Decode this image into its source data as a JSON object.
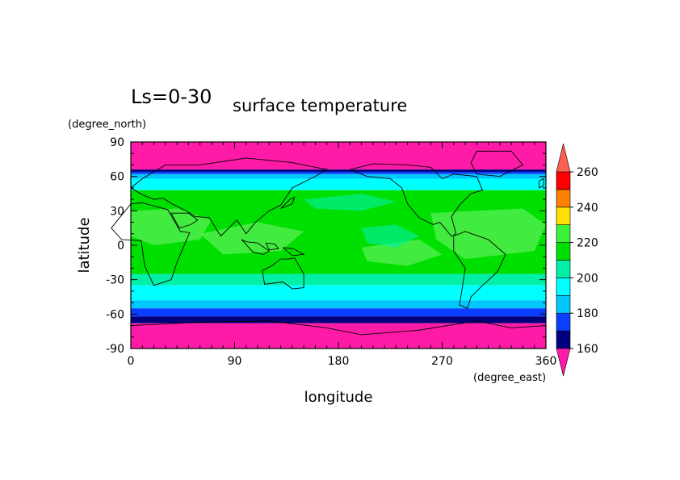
{
  "chart_data": {
    "type": "heatmap",
    "title": "surface temperature",
    "subtitle": "Ls=0-30",
    "xlabel": "longitude",
    "ylabel": "latitude",
    "x_units": "(degree_east)",
    "y_units": "(degree_north)",
    "xlim": [
      0,
      360
    ],
    "ylim": [
      -90,
      90
    ],
    "x_ticks": [
      "0",
      "90",
      "180",
      "270",
      "360"
    ],
    "y_ticks": [
      "90",
      "60",
      "30",
      "0",
      "-30",
      "-60",
      "-90"
    ],
    "x_tick_values": [
      0,
      90,
      180,
      270,
      360
    ],
    "y_tick_values": [
      90,
      60,
      30,
      0,
      -30,
      -60,
      -90
    ],
    "colorbar": {
      "levels": [
        160,
        170,
        180,
        190,
        200,
        210,
        220,
        230,
        240,
        250,
        260
      ],
      "labels": [
        "160",
        "180",
        "200",
        "220",
        "240",
        "260"
      ],
      "colors": [
        "#00007f",
        "#0a3fff",
        "#00c8ff",
        "#00ffff",
        "#00f0a8",
        "#00e000",
        "#3cf03c",
        "#ffe000",
        "#ff7f00",
        "#ff0000",
        "#ff6040"
      ],
      "under_color": "#ff1aa8",
      "over_color": "#ff6050"
    },
    "bands": [
      {
        "lat_from": 90,
        "lat_to": 66,
        "value": "<160"
      },
      {
        "lat_from": 66,
        "lat_to": 64,
        "value": "160-170"
      },
      {
        "lat_from": 64,
        "lat_to": 62,
        "value": "170-180"
      },
      {
        "lat_from": 62,
        "lat_to": 58,
        "value": "180-190"
      },
      {
        "lat_from": 58,
        "lat_to": 48,
        "value": "190-200"
      },
      {
        "lat_from": 48,
        "lat_to": -25,
        "value": "210-220"
      },
      {
        "lat_from": -25,
        "lat_to": -35,
        "value": "200-210"
      },
      {
        "lat_from": -35,
        "lat_to": -48,
        "value": "190-200"
      },
      {
        "lat_from": -48,
        "lat_to": -55,
        "value": "180-190"
      },
      {
        "lat_from": -55,
        "lat_to": -62,
        "value": "170-180"
      },
      {
        "lat_from": -62,
        "lat_to": -68,
        "value": "160-170"
      },
      {
        "lat_from": -68,
        "lat_to": -90,
        "value": "<160"
      }
    ]
  }
}
